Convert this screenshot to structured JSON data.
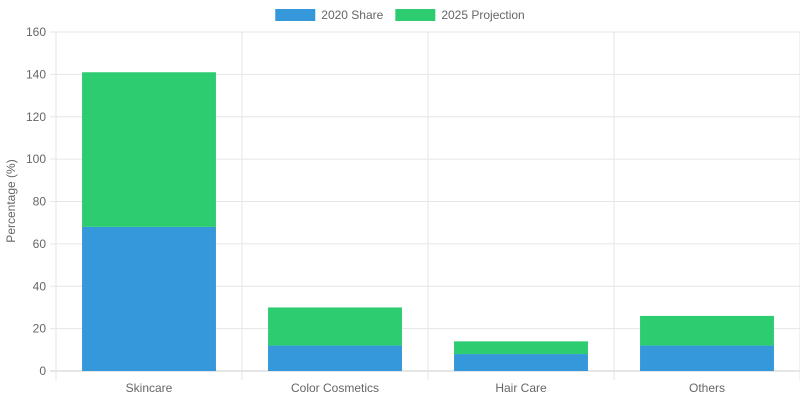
{
  "chart_data": {
    "type": "bar",
    "stacked": true,
    "categories": [
      "Skincare",
      "Color Cosmetics",
      "Hair Care",
      "Others"
    ],
    "series": [
      {
        "name": "2020 Share",
        "color": "#3498db",
        "values": [
          68,
          12,
          8,
          12
        ]
      },
      {
        "name": "2025 Projection",
        "color": "#2ecc71",
        "values": [
          73,
          18,
          6,
          14
        ]
      }
    ],
    "title": "",
    "xlabel": "",
    "ylabel": "Percentage (%)",
    "ylim": [
      0,
      160
    ],
    "yticks": [
      0,
      20,
      40,
      60,
      80,
      100,
      120,
      140,
      160
    ],
    "grid": true,
    "legend_position": "top-center"
  }
}
